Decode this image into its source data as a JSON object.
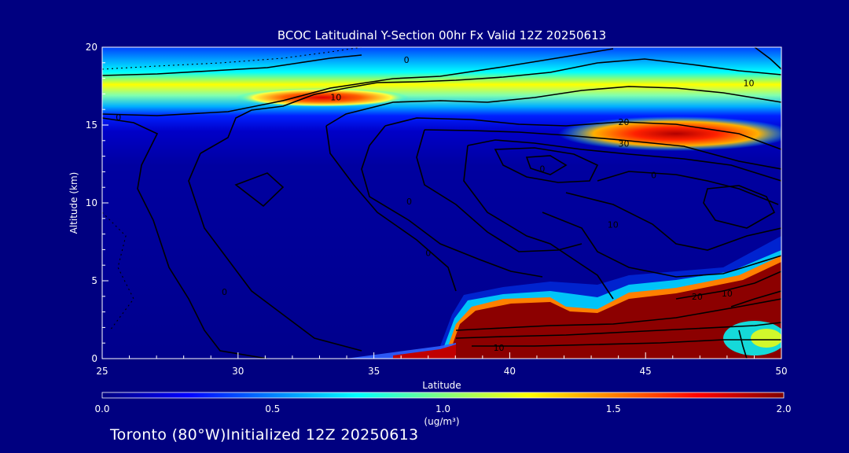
{
  "chart_data": {
    "type": "heatmap",
    "title": "BCOC Latitudinal Y-Section 00hr  Fx Valid 12Z 20250613",
    "xlabel": "Latitude",
    "ylabel": "Altitude (km)",
    "xlim": [
      25,
      50
    ],
    "ylim": [
      0,
      20
    ],
    "x_ticks": [
      "25",
      "30",
      "35",
      "40",
      "45",
      "50"
    ],
    "y_ticks": [
      "0",
      "5",
      "10",
      "15",
      "20"
    ],
    "colorbar": {
      "label": "(ug/m³)",
      "range": [
        0.0,
        2.0
      ],
      "ticks": [
        "0.0",
        "0.5",
        "1.0",
        "1.5",
        "2.0"
      ],
      "colors": [
        "#00007f",
        "#0000ff",
        "#0080ff",
        "#00ffff",
        "#80ff80",
        "#ffff00",
        "#ff8000",
        "#ff0000",
        "#7f0000"
      ]
    },
    "contour_labels": [
      "0",
      "10",
      "0",
      "10",
      "20",
      "30",
      "10",
      "10",
      "0",
      "0",
      "0",
      "20",
      "10",
      "0",
      "0"
    ],
    "concentration_regions": [
      {
        "region": "upper layer",
        "lat": [
          25,
          50
        ],
        "alt": [
          15,
          18.5
        ],
        "value": 0.8
      },
      {
        "region": "plume near 17 km",
        "lat": [
          31,
          36
        ],
        "alt": [
          16.6,
          17.4
        ],
        "value": 1.6
      },
      {
        "region": "plume near 15 km",
        "lat": [
          43,
          50
        ],
        "alt": [
          13,
          15.5
        ],
        "value": 1.8
      },
      {
        "region": "boundary layer",
        "lat": [
          37.5,
          50
        ],
        "alt": [
          0,
          4.5
        ],
        "value": 2.0
      },
      {
        "region": "free troposphere",
        "lat": [
          25,
          50
        ],
        "alt": [
          0,
          14
        ],
        "value": 0.05
      }
    ]
  },
  "footer": "Toronto (80°W)Initialized 12Z 20250613"
}
